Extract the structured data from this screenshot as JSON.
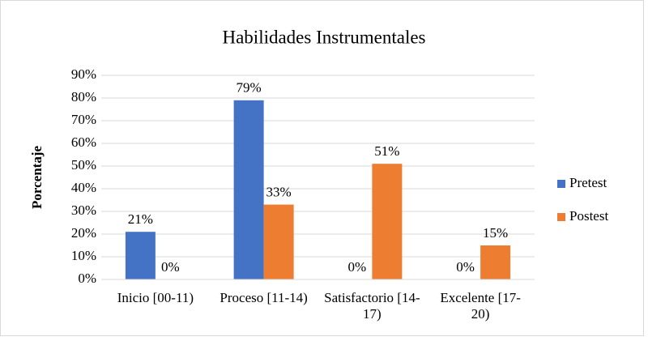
{
  "chart_data": {
    "type": "bar",
    "title": "Habilidades Instrumentales",
    "y_label": "Porcentaje",
    "categories": [
      "Inicio [00-11)",
      "Proceso [11-14)",
      "Satisfactorio [14-17)",
      "Excelente [17-20)"
    ],
    "series": [
      {
        "name": "Pretest",
        "color": "#4472c4",
        "values": [
          21,
          79,
          0,
          0
        ],
        "value_labels": [
          "21%",
          "79%",
          "0%",
          "0%"
        ]
      },
      {
        "name": "Postest",
        "color": "#ed7d31",
        "values": [
          0,
          33,
          51,
          15
        ],
        "value_labels": [
          "0%",
          "33%",
          "51%",
          "15%"
        ]
      }
    ],
    "ylim": [
      0,
      90
    ],
    "yticks": [
      {
        "value": 0,
        "label": "0%"
      },
      {
        "value": 10,
        "label": "10%"
      },
      {
        "value": 20,
        "label": "20%"
      },
      {
        "value": 30,
        "label": "30%"
      },
      {
        "value": 40,
        "label": "40%"
      },
      {
        "value": 50,
        "label": "50%"
      },
      {
        "value": 60,
        "label": "60%"
      },
      {
        "value": 70,
        "label": "70%"
      },
      {
        "value": 80,
        "label": "80%"
      },
      {
        "value": 90,
        "label": "90%"
      }
    ],
    "grid": true,
    "legend": "right"
  }
}
